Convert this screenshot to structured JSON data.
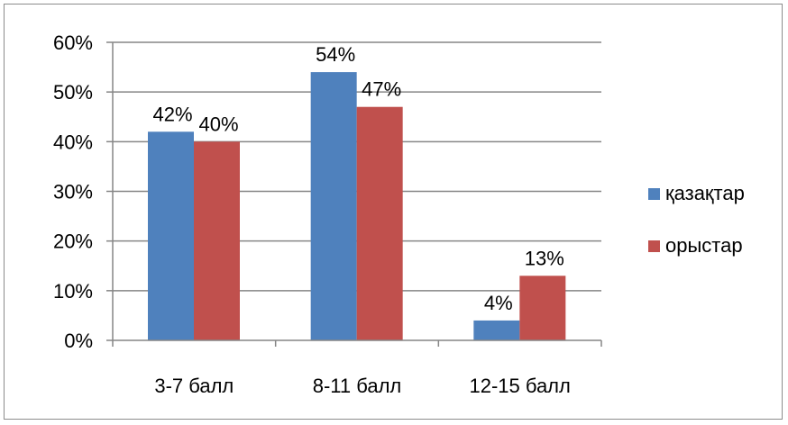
{
  "chart_data": {
    "type": "bar",
    "categories": [
      "3-7 балл",
      "8-11 балл",
      "12-15 балл"
    ],
    "series": [
      {
        "name": "қазақтар",
        "values": [
          42,
          54,
          4
        ],
        "labels": [
          "42%",
          "54%",
          "4%"
        ],
        "color": "#4f81bd"
      },
      {
        "name": "орыстар",
        "values": [
          40,
          47,
          13
        ],
        "labels": [
          "40%",
          "47%",
          "13%"
        ],
        "color": "#c0504d"
      }
    ],
    "yticks": [
      "0%",
      "10%",
      "20%",
      "30%",
      "40%",
      "50%",
      "60%"
    ],
    "ylim": [
      0,
      60
    ],
    "grid": true,
    "legend_position": "right",
    "gridline_color": "#868686",
    "axis_color": "#868686"
  }
}
